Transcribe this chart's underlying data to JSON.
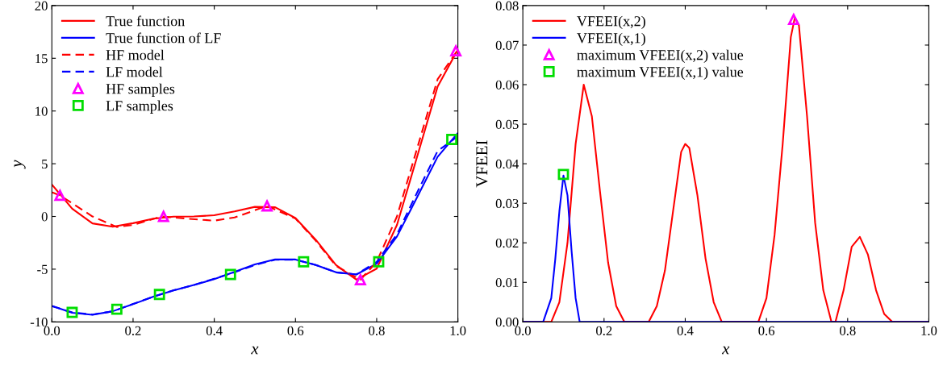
{
  "chart_data": [
    {
      "type": "line",
      "xlabel": "x",
      "ylabel": "y",
      "xlim": [
        0,
        1
      ],
      "ylim": [
        -10,
        20
      ],
      "xticks": [
        {
          "value": 0,
          "label": "0.0"
        },
        {
          "value": 0.2,
          "label": "0.2"
        },
        {
          "value": 0.4,
          "label": "0.4"
        },
        {
          "value": 0.6,
          "label": "0.6"
        },
        {
          "value": 0.8,
          "label": "0.8"
        },
        {
          "value": 1,
          "label": "1.0"
        }
      ],
      "yticks": [
        -10,
        -5,
        0,
        5,
        10,
        15,
        20
      ],
      "grid": false,
      "legend": "top left",
      "series": [
        {
          "name": "True function",
          "color": "#ff0000",
          "line_style": "solid",
          "marker": "none",
          "x": [
            0,
            0.05,
            0.1,
            0.15,
            0.2,
            0.25,
            0.3,
            0.35,
            0.4,
            0.45,
            0.5,
            0.55,
            0.6,
            0.65,
            0.7,
            0.75,
            0.8,
            0.85,
            0.9,
            0.95,
            1.0
          ],
          "values": [
            3.03,
            0.74,
            -0.66,
            -0.98,
            -0.64,
            -0.21,
            -0.02,
            0.0,
            0.11,
            0.48,
            0.91,
            0.87,
            -0.15,
            -2.21,
            -4.61,
            -5.99,
            -4.95,
            -0.8,
            5.71,
            12.3,
            15.83
          ]
        },
        {
          "name": "True function of LF",
          "color": "#0000ff",
          "line_style": "solid",
          "marker": "none",
          "x": [
            0,
            0.05,
            0.1,
            0.15,
            0.2,
            0.25,
            0.3,
            0.35,
            0.4,
            0.45,
            0.5,
            0.55,
            0.6,
            0.65,
            0.7,
            0.75,
            0.8,
            0.85,
            0.9,
            0.95,
            1.0
          ],
          "values": [
            -8.49,
            -9.13,
            -9.33,
            -8.99,
            -8.32,
            -7.6,
            -7.01,
            -6.5,
            -5.95,
            -5.26,
            -4.55,
            -4.07,
            -4.08,
            -4.6,
            -5.3,
            -5.5,
            -4.48,
            -1.9,
            1.85,
            5.65,
            7.92
          ]
        },
        {
          "name": "HF model",
          "color": "#ff0000",
          "line_style": "dashed",
          "marker": "none",
          "x": [
            0,
            0.02,
            0.1,
            0.16,
            0.2,
            0.27,
            0.33,
            0.4,
            0.45,
            0.53,
            0.6,
            0.65,
            0.7,
            0.76,
            0.8,
            0.85,
            0.9,
            0.95,
            1.0
          ],
          "values": [
            2.3,
            2.0,
            0.0,
            -1.0,
            -0.8,
            0.0,
            -0.2,
            -0.4,
            -0.1,
            1.0,
            -0.2,
            -2.3,
            -4.7,
            -6.0,
            -4.3,
            0.0,
            6.5,
            13.0,
            15.8
          ]
        },
        {
          "name": "LF model",
          "color": "#0000ff",
          "line_style": "dashed",
          "marker": "none",
          "x": [
            0,
            0.05,
            0.1,
            0.15,
            0.2,
            0.25,
            0.3,
            0.35,
            0.4,
            0.45,
            0.5,
            0.55,
            0.6,
            0.65,
            0.7,
            0.75,
            0.8,
            0.85,
            0.9,
            0.95,
            1.0
          ],
          "values": [
            -8.5,
            -9.1,
            -9.3,
            -9.0,
            -8.3,
            -7.6,
            -7.0,
            -6.5,
            -5.9,
            -5.3,
            -4.6,
            -4.1,
            -4.1,
            -4.6,
            -5.3,
            -5.5,
            -4.3,
            -1.7,
            2.3,
            6.2,
            7.6
          ]
        },
        {
          "name": "HF samples",
          "type": "scatter",
          "color": "#ff00ff",
          "marker": "triangle",
          "x": [
            0.02,
            0.275,
            0.53,
            0.76,
            0.995
          ],
          "values": [
            2.0,
            0.0,
            1.0,
            -6.0,
            15.7
          ]
        },
        {
          "name": "LF samples",
          "type": "scatter",
          "color": "#00dd00",
          "marker": "square",
          "x": [
            0.05,
            0.16,
            0.265,
            0.44,
            0.62,
            0.805,
            0.985
          ],
          "values": [
            -9.1,
            -8.8,
            -7.4,
            -5.5,
            -4.3,
            -4.3,
            7.3
          ]
        }
      ]
    },
    {
      "type": "line",
      "xlabel": "x",
      "ylabel": "VFEEI",
      "xlim": [
        0,
        1
      ],
      "ylim": [
        0,
        0.08
      ],
      "xticks": [
        {
          "value": 0,
          "label": "0.0"
        },
        {
          "value": 0.2,
          "label": "0.2"
        },
        {
          "value": 0.4,
          "label": "0.4"
        },
        {
          "value": 0.6,
          "label": "0.6"
        },
        {
          "value": 0.8,
          "label": "0.8"
        },
        {
          "value": 1,
          "label": "1.0"
        }
      ],
      "yticks": [
        {
          "value": 0,
          "label": "0.00"
        },
        {
          "value": 0.01,
          "label": "0.01"
        },
        {
          "value": 0.02,
          "label": "0.02"
        },
        {
          "value": 0.03,
          "label": "0.03"
        },
        {
          "value": 0.04,
          "label": "0.04"
        },
        {
          "value": 0.05,
          "label": "0.05"
        },
        {
          "value": 0.06,
          "label": "0.06"
        },
        {
          "value": 0.07,
          "label": "0.07"
        },
        {
          "value": 0.08,
          "label": "0.08"
        }
      ],
      "grid": false,
      "legend": "top left",
      "series": [
        {
          "name": "VFEEI(x,2)",
          "color": "#ff0000",
          "line_style": "solid",
          "marker": "none",
          "x": [
            0,
            0.07,
            0.09,
            0.11,
            0.13,
            0.15,
            0.17,
            0.19,
            0.21,
            0.23,
            0.25,
            0.31,
            0.33,
            0.35,
            0.37,
            0.39,
            0.4,
            0.41,
            0.43,
            0.45,
            0.47,
            0.49,
            0.58,
            0.6,
            0.62,
            0.64,
            0.66,
            0.67,
            0.68,
            0.7,
            0.72,
            0.74,
            0.76,
            0.77,
            0.79,
            0.81,
            0.83,
            0.85,
            0.87,
            0.89,
            0.91,
            1.0
          ],
          "values": [
            0,
            0,
            0.005,
            0.02,
            0.045,
            0.06,
            0.052,
            0.033,
            0.015,
            0.004,
            0,
            0,
            0.004,
            0.013,
            0.028,
            0.043,
            0.045,
            0.044,
            0.032,
            0.016,
            0.005,
            0,
            0,
            0.006,
            0.022,
            0.045,
            0.072,
            0.077,
            0.075,
            0.052,
            0.025,
            0.008,
            0,
            0,
            0.008,
            0.019,
            0.0215,
            0.017,
            0.008,
            0.002,
            0,
            0
          ]
        },
        {
          "name": "VFEEI(x,1)",
          "color": "#0000ff",
          "line_style": "solid",
          "marker": "none",
          "x": [
            0,
            0.05,
            0.07,
            0.08,
            0.09,
            0.1,
            0.11,
            0.12,
            0.13,
            0.14,
            1.0
          ],
          "values": [
            0,
            0,
            0.006,
            0.016,
            0.028,
            0.037,
            0.032,
            0.018,
            0.006,
            0,
            0
          ]
        },
        {
          "name": "maximum VFEEI(x,2) value",
          "type": "scatter",
          "color": "#ff00ff",
          "marker": "triangle",
          "x": [
            0.667
          ],
          "values": [
            0.0765
          ]
        },
        {
          "name": "maximum VFEEI(x,1) value",
          "type": "scatter",
          "color": "#00dd00",
          "marker": "square",
          "x": [
            0.1
          ],
          "values": [
            0.0373
          ]
        }
      ]
    }
  ]
}
